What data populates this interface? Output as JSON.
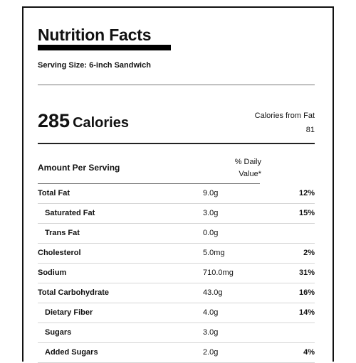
{
  "label": {
    "title": "Nutrition Facts",
    "serving_size": "Serving Size:  6-inch Sandwich",
    "calories_value": "285",
    "calories_word": "Calories",
    "calories_from_fat_label": "Calories from Fat",
    "calories_from_fat_value": "81",
    "amount_per_serving": "Amount Per Serving",
    "daily_value_header_line1": "% Daily",
    "daily_value_header_line2": "Value*",
    "rows": [
      {
        "name": "Total Fat",
        "amount": "9.0g",
        "dv": "12%",
        "indent": false
      },
      {
        "name": "Saturated Fat",
        "amount": "3.0g",
        "dv": "15%",
        "indent": true
      },
      {
        "name": "Trans Fat",
        "amount": "0.0g",
        "dv": "",
        "indent": true
      },
      {
        "name": "Cholesterol",
        "amount": "5.0mg",
        "dv": "2%",
        "indent": false
      },
      {
        "name": "Sodium",
        "amount": "710.0mg",
        "dv": "31%",
        "indent": false
      },
      {
        "name": "Total Carbohydrate",
        "amount": "43.0g",
        "dv": "16%",
        "indent": false
      },
      {
        "name": "Dietary Fiber",
        "amount": "4.0g",
        "dv": "14%",
        "indent": true
      },
      {
        "name": "Sugars",
        "amount": "3.0g",
        "dv": "",
        "indent": true
      },
      {
        "name": "Added Sugars",
        "amount": "2.0g",
        "dv": "4%",
        "indent": true
      }
    ]
  }
}
